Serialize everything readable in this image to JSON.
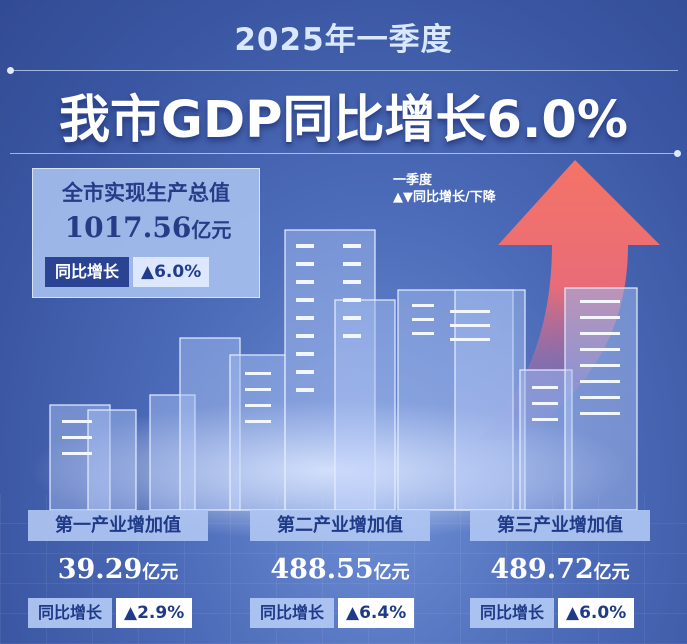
{
  "header": {
    "period": "2025年一季度",
    "headline": "我市GDP同比增长6.0%"
  },
  "total": {
    "label": "全市实现生产总值",
    "value": "1017.56",
    "unit": "亿元",
    "growth_label": "同比增长",
    "growth_value": "▲6.0%"
  },
  "legend": {
    "line1": "一季度",
    "line2": "▲▼同比增长/下降"
  },
  "industries": [
    {
      "title": "第一产业增加值",
      "value": "39.29",
      "unit": "亿元",
      "growth_label": "同比增长",
      "growth_value": "▲2.9%"
    },
    {
      "title": "第二产业增加值",
      "value": "488.55",
      "unit": "亿元",
      "growth_label": "同比增长",
      "growth_value": "▲6.4%"
    },
    {
      "title": "第三产业增加值",
      "value": "489.72",
      "unit": "亿元",
      "growth_label": "同比增长",
      "growth_value": "▲6.0%"
    }
  ],
  "colors": {
    "background": "#4c6bb8",
    "arrow_top": "#f0706a",
    "arrow_bottom": "#7a6fcf",
    "accent_dark": "#253c86"
  }
}
